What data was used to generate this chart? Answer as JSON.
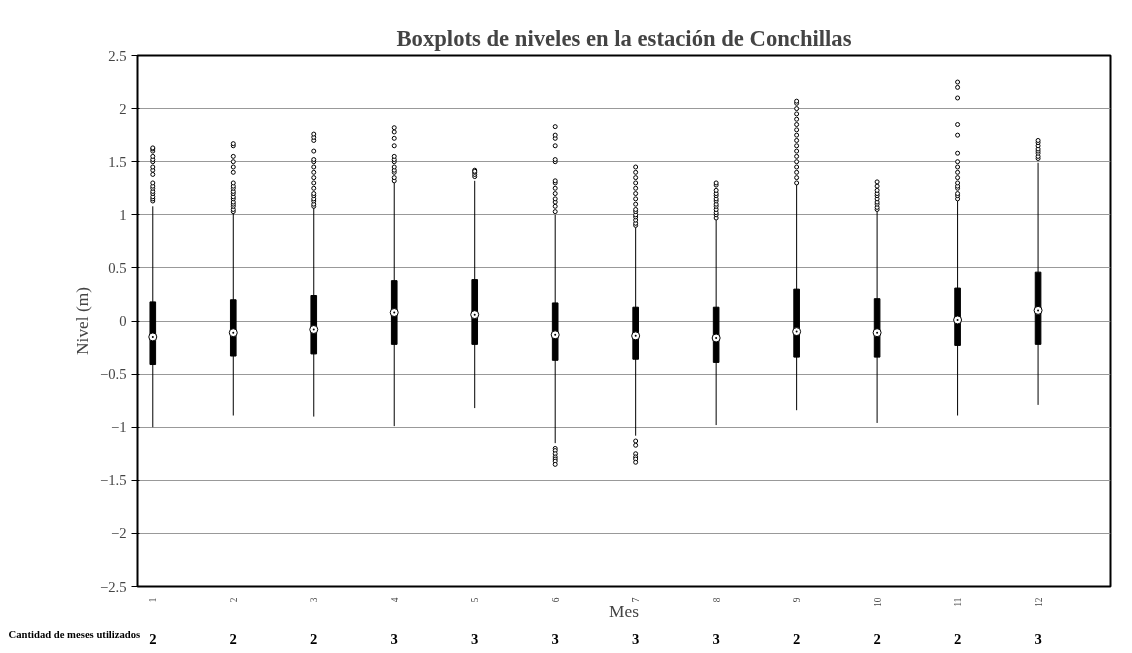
{
  "chart_data": {
    "type": "box",
    "title": "Boxplots de niveles en la estación de Conchillas",
    "xlabel": "Mes",
    "ylabel": "Nivel (m)",
    "categories": [
      "1",
      "2",
      "3",
      "4",
      "5",
      "6",
      "7",
      "8",
      "9",
      "10",
      "11",
      "12"
    ],
    "ylim": [
      -2.5,
      2.5
    ],
    "yticks": [
      -2.5,
      -2,
      -1.5,
      -1,
      -0.5,
      0,
      0.5,
      1,
      1.5,
      2,
      2.5
    ],
    "grid": "y",
    "marker": "circle",
    "boxes": [
      {
        "low": -1.0,
        "q1": -0.41,
        "median": -0.15,
        "q3": 0.18,
        "high": 1.08,
        "outliers": [
          1.13,
          1.15,
          1.17,
          1.2,
          1.22,
          1.25,
          1.27,
          1.3,
          1.38,
          1.42,
          1.45,
          1.5,
          1.52,
          1.55,
          1.6,
          1.62,
          1.63
        ]
      },
      {
        "low": -0.89,
        "q1": -0.33,
        "median": -0.11,
        "q3": 0.2,
        "high": 1.02,
        "outliers": [
          1.03,
          1.05,
          1.08,
          1.1,
          1.12,
          1.15,
          1.17,
          1.2,
          1.22,
          1.25,
          1.27,
          1.3,
          1.4,
          1.45,
          1.5,
          1.55,
          1.65,
          1.67
        ]
      },
      {
        "low": -0.9,
        "q1": -0.31,
        "median": -0.08,
        "q3": 0.24,
        "high": 1.07,
        "outliers": [
          1.08,
          1.1,
          1.13,
          1.15,
          1.18,
          1.2,
          1.25,
          1.3,
          1.35,
          1.4,
          1.45,
          1.5,
          1.52,
          1.6,
          1.7,
          1.73,
          1.76
        ]
      },
      {
        "low": -0.99,
        "q1": -0.22,
        "median": 0.08,
        "q3": 0.38,
        "high": 1.3,
        "outliers": [
          1.32,
          1.35,
          1.4,
          1.42,
          1.45,
          1.5,
          1.52,
          1.55,
          1.65,
          1.72,
          1.78,
          1.82
        ]
      },
      {
        "low": -0.82,
        "q1": -0.22,
        "median": 0.06,
        "q3": 0.39,
        "high": 1.32,
        "outliers": [
          1.36,
          1.38,
          1.4,
          1.42,
          1.41
        ]
      },
      {
        "low": -1.15,
        "q1": -0.37,
        "median": -0.13,
        "q3": 0.17,
        "high": 1.0,
        "outliers": [
          1.03,
          1.08,
          1.12,
          1.15,
          1.2,
          1.25,
          1.3,
          1.32,
          1.5,
          1.52,
          1.65,
          1.72,
          1.75,
          1.83,
          -1.2,
          -1.22,
          -1.25,
          -1.28,
          -1.3,
          -1.32,
          -1.35
        ]
      },
      {
        "low": -1.08,
        "q1": -0.36,
        "median": -0.14,
        "q3": 0.13,
        "high": 0.88,
        "outliers": [
          0.9,
          0.92,
          0.95,
          0.98,
          1.0,
          1.03,
          1.05,
          1.1,
          1.15,
          1.2,
          1.25,
          1.3,
          1.35,
          1.4,
          1.45,
          -1.13,
          -1.17,
          -1.25,
          -1.28,
          -1.3,
          -1.33
        ]
      },
      {
        "low": -0.98,
        "q1": -0.39,
        "median": -0.16,
        "q3": 0.13,
        "high": 0.95,
        "outliers": [
          0.97,
          1.0,
          1.02,
          1.05,
          1.08,
          1.1,
          1.13,
          1.15,
          1.18,
          1.2,
          1.23,
          1.28,
          1.3
        ]
      },
      {
        "low": -0.84,
        "q1": -0.34,
        "median": -0.1,
        "q3": 0.3,
        "high": 1.28,
        "outliers": [
          1.3,
          1.35,
          1.4,
          1.45,
          1.5,
          1.55,
          1.6,
          1.65,
          1.7,
          1.75,
          1.8,
          1.85,
          1.9,
          1.95,
          2.0,
          2.05,
          2.07
        ]
      },
      {
        "low": -0.96,
        "q1": -0.34,
        "median": -0.11,
        "q3": 0.21,
        "high": 1.03,
        "outliers": [
          1.05,
          1.07,
          1.1,
          1.12,
          1.15,
          1.18,
          1.2,
          1.23,
          1.27,
          1.31
        ]
      },
      {
        "low": -0.89,
        "q1": -0.23,
        "median": 0.01,
        "q3": 0.31,
        "high": 1.13,
        "outliers": [
          1.15,
          1.18,
          1.2,
          1.25,
          1.27,
          1.3,
          1.35,
          1.4,
          1.45,
          1.5,
          1.58,
          1.75,
          1.85,
          2.1,
          2.2,
          2.25
        ]
      },
      {
        "low": -0.79,
        "q1": -0.22,
        "median": 0.1,
        "q3": 0.46,
        "high": 1.49,
        "outliers": [
          1.53,
          1.55,
          1.58,
          1.6,
          1.62,
          1.65,
          1.68,
          1.7
        ]
      }
    ],
    "annotations": [
      "Cantidad de meses utilizados",
      "2",
      "2",
      "2",
      "3",
      "3",
      "3",
      "3",
      "3",
      "2",
      "2",
      "2",
      "3"
    ]
  }
}
